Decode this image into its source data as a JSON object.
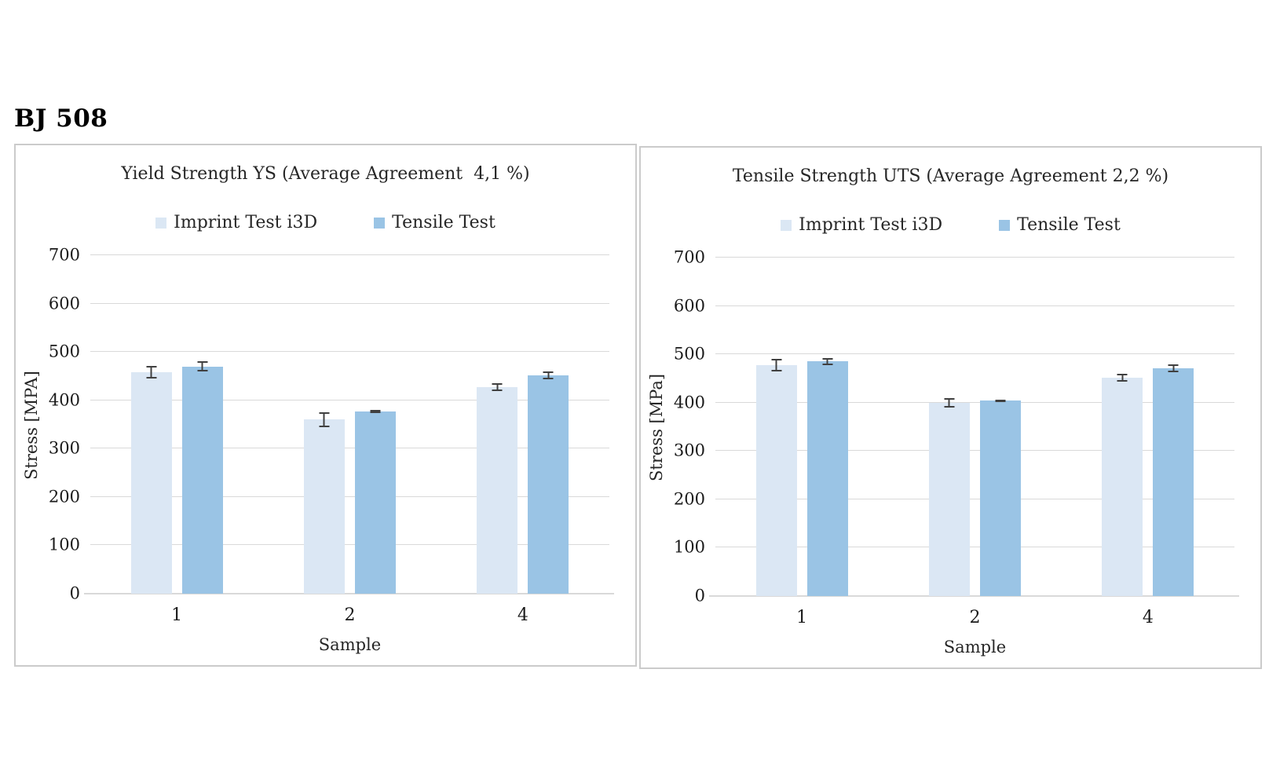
{
  "page": {
    "title": "BJ 508"
  },
  "colors": {
    "imprint_fill": "#DBE7F4",
    "tensile_fill": "#9AC4E5",
    "gridline": "#D9D9D9",
    "axis_line": "#D9D9D9",
    "error_bar": "#404040",
    "panel_border": "#CBCBCB",
    "text": "#262626"
  },
  "chart_data": [
    {
      "type": "bar",
      "title": "Yield Strength YS (Average Agreement  4,1 %)",
      "xlabel": "Sample",
      "ylabel": "Stress [MPA]",
      "ylim": [
        0,
        700
      ],
      "ytick_step": 100,
      "grid": true,
      "legend_position": "top",
      "categories": [
        "1",
        "2",
        "4"
      ],
      "series": [
        {
          "name": "Imprint Test i3D",
          "color": "#DBE7F4",
          "values": [
            458,
            360,
            427
          ],
          "errors": [
            13,
            15,
            8
          ]
        },
        {
          "name": "Tensile Test",
          "color": "#9AC4E5",
          "values": [
            470,
            377,
            452
          ],
          "errors": [
            10,
            3,
            8
          ]
        }
      ]
    },
    {
      "type": "bar",
      "title": "Tensile Strength UTS (Average Agreement 2,2 %)",
      "xlabel": "Sample",
      "ylabel": "Stress [MPa]",
      "ylim": [
        0,
        700
      ],
      "ytick_step": 100,
      "grid": true,
      "legend_position": "top",
      "categories": [
        "1",
        "2",
        "4"
      ],
      "series": [
        {
          "name": "Imprint Test i3D",
          "color": "#DBE7F4",
          "values": [
            478,
            400,
            452
          ],
          "errors": [
            13,
            10,
            8
          ]
        },
        {
          "name": "Tensile Test",
          "color": "#9AC4E5",
          "values": [
            485,
            404,
            471
          ],
          "errors": [
            7,
            2,
            8
          ]
        }
      ]
    }
  ]
}
